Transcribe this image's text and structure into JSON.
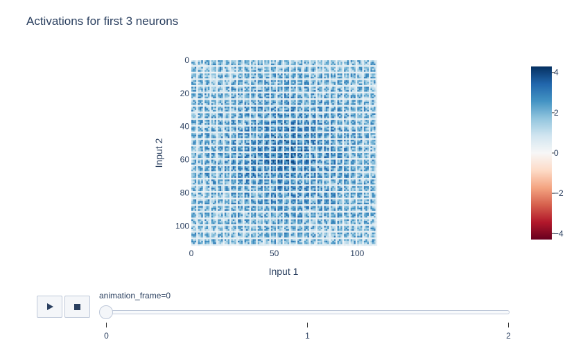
{
  "chart_data": {
    "type": "heatmap",
    "title": "Activations for first 3 neurons",
    "xlabel": "Input 1",
    "ylabel": "Input 2",
    "xlim": [
      0,
      112
    ],
    "ylim": [
      112,
      0
    ],
    "x_ticks": [
      0,
      50,
      100
    ],
    "y_ticks": [
      0,
      20,
      40,
      60,
      80,
      100
    ],
    "grid_size": [
      112,
      112
    ],
    "pattern": "fine periodic grid of mostly positive activations (light to dark blue) separated by near-zero white lines",
    "colorscale": [
      "#67001f",
      "#b2182b",
      "#d6604d",
      "#f4a582",
      "#fddbc7",
      "#f7f7f7",
      "#d1e5f0",
      "#92c5de",
      "#4393c3",
      "#2166ac",
      "#053061"
    ],
    "colorbar": {
      "range": [
        -4.3,
        4.3
      ],
      "ticks": [
        4,
        2,
        0,
        -2,
        -4
      ],
      "tick_labels": [
        "4",
        "2",
        "0",
        "−2",
        "−4"
      ]
    }
  },
  "animation": {
    "current_label": "animation_frame=0",
    "steps": [
      "0",
      "1",
      "2"
    ],
    "current_index": 0,
    "play_icon": "play-icon",
    "stop_icon": "stop-icon"
  }
}
